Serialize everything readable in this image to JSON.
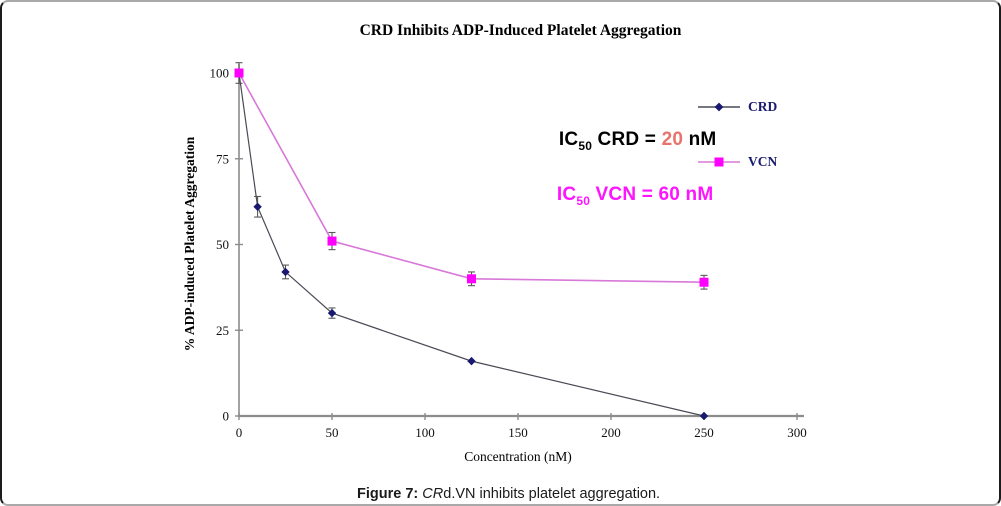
{
  "chart_data": {
    "type": "line",
    "title": "CRD Inhibits ADP-Induced Platelet Aggregation",
    "xlabel": "Concentration (nM)",
    "ylabel": "% ADP-induced Platelet Aggregation",
    "xlim": [
      0,
      300
    ],
    "ylim": [
      0,
      100
    ],
    "x_ticks": [
      0,
      50,
      100,
      150,
      200,
      250,
      300
    ],
    "y_ticks": [
      0,
      25,
      50,
      75,
      100
    ],
    "grid": false,
    "legend_position": "upper right",
    "axis_color": "#8c8c8c",
    "error_bar_color": "#5a5a5a",
    "series": [
      {
        "name": "CRD",
        "marker": "diamond",
        "line_color": "#4a4a55",
        "marker_color": "#191970",
        "x": [
          0,
          10,
          25,
          50,
          125,
          250
        ],
        "y": [
          100,
          61,
          42,
          30,
          16,
          0
        ],
        "yerr": [
          3,
          3,
          2,
          1.5,
          0,
          0
        ]
      },
      {
        "name": "VCN",
        "marker": "square",
        "line_color": "#d878d8",
        "marker_color": "#ff00ff",
        "x": [
          0,
          50,
          125,
          250
        ],
        "y": [
          100,
          51,
          40,
          39
        ],
        "yerr": [
          0,
          2.5,
          2,
          2
        ]
      }
    ],
    "annotations": [
      {
        "prefix": "IC",
        "sub": "50",
        "mid": " CRD = ",
        "value": "20",
        "suffix": " nM",
        "text_color": "#000000",
        "value_color": "#e8736c"
      },
      {
        "prefix": "IC",
        "sub": "50",
        "mid": " VCN = ",
        "value": "60",
        "suffix": " nM",
        "text_color": "#ff14ff",
        "value_color": "#ff14ff"
      }
    ]
  },
  "legend": {
    "text_color": "#1a1a6e",
    "items": [
      {
        "label": "CRD"
      },
      {
        "label": "VCN"
      }
    ]
  },
  "caption": {
    "prefix": "Figure 7: ",
    "italic": "CR",
    "rest": "d.VN inhibits platelet aggregation."
  }
}
